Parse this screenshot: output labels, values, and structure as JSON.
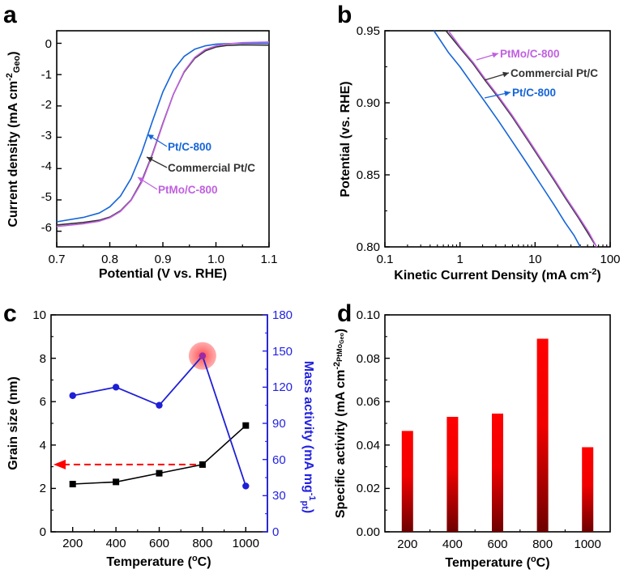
{
  "colors": {
    "blue": "#1565d8",
    "black": "#333333",
    "violet": "#c060e0",
    "marker_blue": "#1f1fd6",
    "axis_right": "#2323e0",
    "red": "#ff0000",
    "dark_red": "#6e0000"
  },
  "panel_a": {
    "letter": "a",
    "xlabel": "Potential (V vs. RHE)",
    "ylabel": "Current density (mA cm",
    "ylabel_sup": "-2",
    "ylabel_sub": "Geo",
    "ylabel_end": ")",
    "xticks": [
      "0.7",
      "0.8",
      "0.9",
      "1.0",
      "1.1"
    ],
    "yticks": [
      "0",
      "-1",
      "-2",
      "-3",
      "-4",
      "-5",
      "-6"
    ],
    "annotations": [
      "Pt/C-800",
      "Commercial Pt/C",
      "PtMo/C-800"
    ]
  },
  "panel_b": {
    "letter": "b",
    "xlabel": "Kinetic Current Density (mA cm",
    "xlabel_sup": "-2",
    "xlabel_end": ")",
    "ylabel": "Potential (vs. RHE)",
    "xticks": [
      "0.1",
      "1",
      "10",
      "100"
    ],
    "yticks": [
      "0.80",
      "0.85",
      "0.90",
      "0.95"
    ],
    "annotations": [
      "PtMo/C-800",
      "Commercial Pt/C",
      "Pt/C-800"
    ]
  },
  "panel_c": {
    "letter": "c",
    "xlabel": "Temperature (",
    "xlabel_sup": "o",
    "xlabel_end": "C)",
    "ylabel_left": "Grain size (nm)",
    "ylabel_right": "Mass activity  (mA mg",
    "ylabel_right_sup": "-1",
    "ylabel_right_sub": "pt",
    "ylabel_right_end": ")",
    "xticks": [
      "200",
      "400",
      "600",
      "800",
      "1000"
    ],
    "yticks_left": [
      "0",
      "2",
      "4",
      "6",
      "8",
      "10"
    ],
    "yticks_right": [
      "0",
      "30",
      "60",
      "90",
      "120",
      "150",
      "180"
    ]
  },
  "panel_d": {
    "letter": "d",
    "xlabel": "Temperature (",
    "xlabel_sup": "o",
    "xlabel_end": "C)",
    "ylabel": "Specific activity  (mA cm",
    "ylabel_sup": "-2",
    "ylabel_sub": "PtMo",
    "ylabel_subsub": "Geo",
    "ylabel_end": ")",
    "xticks": [
      "200",
      "400",
      "600",
      "800",
      "1000"
    ],
    "yticks": [
      "0.00",
      "0.02",
      "0.04",
      "0.06",
      "0.08",
      "0.10"
    ]
  },
  "chart_data": [
    {
      "type": "line",
      "xlim": [
        0.7,
        1.1
      ],
      "ylim": [
        -6.5,
        0.4
      ],
      "xlabel": "Potential (V vs. RHE)",
      "ylabel": "Current density (mA cm-2Geo)",
      "series": [
        {
          "name": "Pt/C-800",
          "color": "#1565d8",
          "x": [
            0.7,
            0.75,
            0.78,
            0.8,
            0.82,
            0.84,
            0.86,
            0.88,
            0.9,
            0.92,
            0.94,
            0.96,
            0.98,
            1.0,
            1.02,
            1.05,
            1.1
          ],
          "y": [
            -5.7,
            -5.56,
            -5.42,
            -5.22,
            -4.88,
            -4.32,
            -3.5,
            -2.5,
            -1.55,
            -0.85,
            -0.42,
            -0.19,
            -0.08,
            -0.03,
            -0.01,
            0.0,
            0.0
          ]
        },
        {
          "name": "Commercial Pt/C",
          "color": "#333333",
          "x": [
            0.7,
            0.75,
            0.78,
            0.8,
            0.82,
            0.84,
            0.86,
            0.88,
            0.9,
            0.92,
            0.94,
            0.96,
            0.98,
            1.0,
            1.02,
            1.05,
            1.1
          ],
          "y": [
            -5.8,
            -5.72,
            -5.65,
            -5.55,
            -5.35,
            -5.0,
            -4.4,
            -3.55,
            -2.55,
            -1.62,
            -0.92,
            -0.48,
            -0.24,
            -0.12,
            -0.07,
            -0.05,
            -0.06
          ]
        },
        {
          "name": "PtMo/C-800",
          "color": "#c060e0",
          "x": [
            0.7,
            0.75,
            0.78,
            0.8,
            0.82,
            0.84,
            0.86,
            0.88,
            0.9,
            0.92,
            0.94,
            0.96,
            0.98,
            1.0,
            1.02,
            1.05,
            1.1
          ],
          "y": [
            -5.85,
            -5.76,
            -5.68,
            -5.57,
            -5.37,
            -5.02,
            -4.44,
            -3.58,
            -2.58,
            -1.62,
            -0.9,
            -0.45,
            -0.2,
            -0.08,
            -0.02,
            0.02,
            0.04
          ]
        }
      ]
    },
    {
      "type": "line",
      "xscale": "log",
      "xlim": [
        0.1,
        100
      ],
      "ylim": [
        0.8,
        0.95
      ],
      "xlabel": "Kinetic Current Density (mA cm-2)",
      "ylabel": "Potential (vs. RHE)",
      "series": [
        {
          "name": "Pt/C-800",
          "color": "#1565d8",
          "x": [
            0.45,
            0.7,
            1.0,
            1.5,
            2.2,
            3.2,
            5,
            8,
            12,
            18,
            25,
            33,
            40
          ],
          "y": [
            0.95,
            0.935,
            0.925,
            0.912,
            0.9,
            0.888,
            0.873,
            0.857,
            0.843,
            0.829,
            0.817,
            0.808,
            0.8
          ]
        },
        {
          "name": "Commercial Pt/C",
          "color": "#333333",
          "x": [
            0.65,
            1.0,
            1.5,
            2.2,
            3.2,
            5,
            8,
            12,
            18,
            26,
            38,
            50,
            62
          ],
          "y": [
            0.95,
            0.938,
            0.927,
            0.915,
            0.904,
            0.89,
            0.874,
            0.86,
            0.846,
            0.833,
            0.82,
            0.81,
            0.802
          ]
        },
        {
          "name": "PtMo/C-800",
          "color": "#c060e0",
          "x": [
            0.7,
            1.0,
            1.5,
            2.2,
            3.2,
            5,
            8,
            12,
            18,
            26,
            38,
            52,
            66
          ],
          "y": [
            0.95,
            0.939,
            0.928,
            0.916,
            0.905,
            0.891,
            0.875,
            0.861,
            0.847,
            0.834,
            0.821,
            0.81,
            0.8
          ]
        }
      ]
    },
    {
      "type": "line",
      "xlim": [
        100,
        1100
      ],
      "ylim": [
        0,
        10
      ],
      "y2lim": [
        0,
        180
      ],
      "xlabel": "Temperature (oC)",
      "ylabel": "Grain size (nm)",
      "y2label": "Mass activity (mA mg-1pt)",
      "categories": [
        200,
        400,
        600,
        800,
        1000
      ],
      "series": [
        {
          "name": "Grain size",
          "axis": "left",
          "values": [
            2.2,
            2.3,
            2.7,
            3.1,
            4.9
          ]
        },
        {
          "name": "Mass activity",
          "axis": "right",
          "values": [
            113,
            120,
            105,
            146,
            38
          ]
        }
      ],
      "highlight": {
        "x": 800,
        "series": "Mass activity"
      },
      "arrow": {
        "from_x": 800,
        "to_x": 100,
        "y": 3.1
      }
    },
    {
      "type": "bar",
      "xlim": [
        100,
        1100
      ],
      "ylim": [
        0,
        0.1
      ],
      "xlabel": "Temperature (oC)",
      "ylabel": "Specific activity (mA cm-2PtMoGeo)",
      "categories": [
        "200",
        "400",
        "600",
        "800",
        "1000"
      ],
      "values": [
        0.0465,
        0.053,
        0.0545,
        0.089,
        0.039
      ]
    }
  ]
}
